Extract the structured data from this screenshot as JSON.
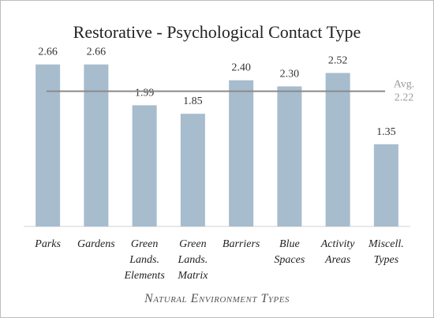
{
  "chart_data": {
    "type": "bar",
    "title": "Restorative - Psychological Contact Type",
    "xlabel": "Natural Environment Types",
    "ylabel": "",
    "categories": [
      [
        "Parks"
      ],
      [
        "Gardens"
      ],
      [
        "Green",
        "Lands.",
        "Elements"
      ],
      [
        "Green",
        "Lands.",
        "Matrix"
      ],
      [
        "Barriers"
      ],
      [
        "Blue",
        "Spaces"
      ],
      [
        "Activity",
        "Areas"
      ],
      [
        "Miscell.",
        "Types"
      ]
    ],
    "values": [
      2.66,
      2.66,
      1.99,
      1.85,
      2.4,
      2.3,
      2.52,
      1.35
    ],
    "value_labels": [
      "2.66",
      "2.66",
      "1.99",
      "1.85",
      "2.40",
      "2.30",
      "2.52",
      "1.35"
    ],
    "ylim": [
      0,
      2.85
    ],
    "average": {
      "label_line1": "Avg.",
      "label_line2": "2.22",
      "value": 2.22
    },
    "grid": false,
    "colors": {
      "bar": "#a7bccd",
      "avg_line": "#8a8a8a",
      "axis": "#d0d0d0"
    }
  }
}
